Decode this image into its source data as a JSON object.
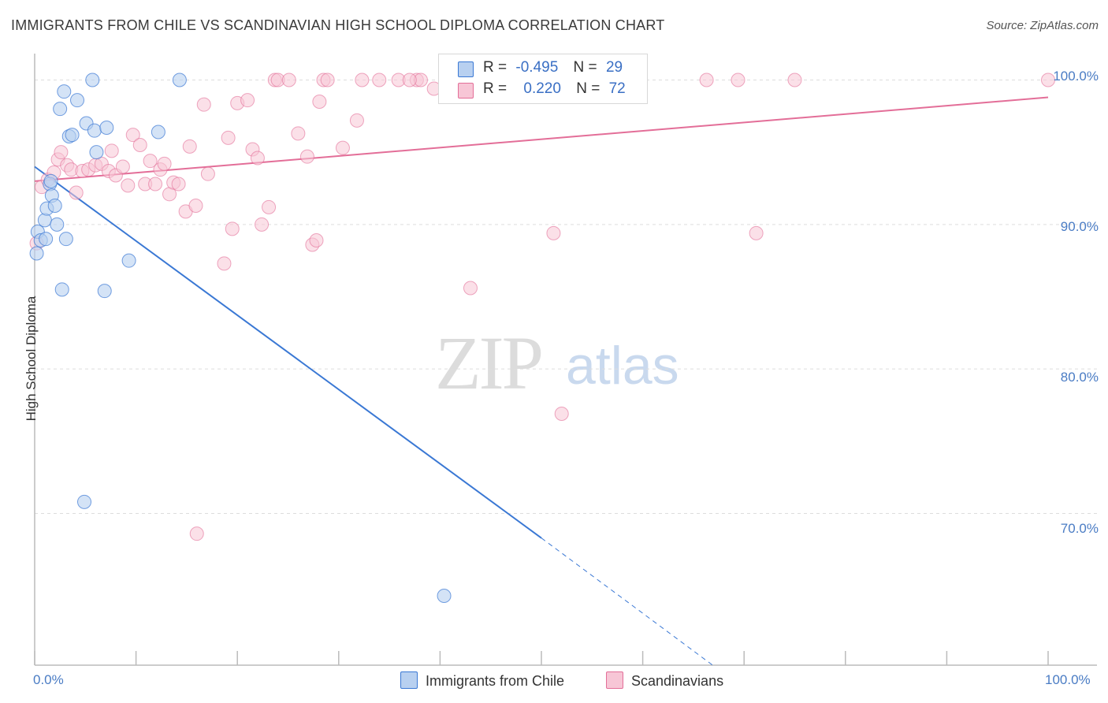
{
  "title": "IMMIGRANTS FROM CHILE VS SCANDINAVIAN HIGH SCHOOL DIPLOMA CORRELATION CHART",
  "source": "Source: ZipAtlas.com",
  "watermark": {
    "part1": "ZIP",
    "part2": "atlas"
  },
  "colors": {
    "blue": "#3a78d4",
    "blue_fill": "#b8d0f0",
    "pink": "#e36e98",
    "pink_fill": "#f7c6d6",
    "tick_text": "#4a7cc4",
    "grid": "#dddddd"
  },
  "legend_box": {
    "rows": [
      {
        "r_label": "R =",
        "r_value": "-0.495",
        "n_label": "N =",
        "n_value": "29"
      },
      {
        "r_label": "R =",
        "r_value": "0.220",
        "n_label": "N =",
        "n_value": "72"
      }
    ]
  },
  "bottom_legend": [
    "Immigrants from Chile",
    "Scandinavians"
  ],
  "chart_data": {
    "type": "scatter",
    "title": "IMMIGRANTS FROM CHILE VS SCANDINAVIAN HIGH SCHOOL DIPLOMA CORRELATION CHART",
    "xlabel": "",
    "ylabel": "High School Diploma",
    "xlim": [
      0,
      100
    ],
    "ylim": [
      59.5,
      101.5
    ],
    "x_tick_labels": [
      "0.0%",
      "100.0%"
    ],
    "y_ticks": [
      100,
      90,
      80,
      70
    ],
    "y_tick_labels": [
      "100.0%",
      "90.0%",
      "80.0%",
      "70.0%"
    ],
    "grid": true,
    "series": [
      {
        "name": "Immigrants from Chile",
        "color": "#3a78d4",
        "r": -0.495,
        "n": 29,
        "trend": {
          "x0": 0,
          "y0": 94.0,
          "x1": 50,
          "y1": 68.3,
          "dashed_to_x": 66.9,
          "dashed_to_y": 59.5
        },
        "points": [
          [
            0.2,
            88.0
          ],
          [
            0.3,
            89.5
          ],
          [
            0.6,
            88.9
          ],
          [
            1.0,
            90.3
          ],
          [
            1.2,
            91.1
          ],
          [
            1.5,
            92.8
          ],
          [
            1.7,
            92.0
          ],
          [
            2.0,
            91.3
          ],
          [
            2.2,
            90.0
          ],
          [
            2.5,
            98.0
          ],
          [
            2.9,
            99.2
          ],
          [
            3.1,
            89.0
          ],
          [
            3.4,
            96.1
          ],
          [
            3.7,
            96.2
          ],
          [
            4.2,
            98.6
          ],
          [
            5.1,
            97.0
          ],
          [
            5.7,
            100.0
          ],
          [
            5.9,
            96.5
          ],
          [
            6.1,
            95.0
          ],
          [
            7.1,
            96.7
          ],
          [
            2.7,
            85.5
          ],
          [
            6.9,
            85.4
          ],
          [
            9.3,
            87.5
          ],
          [
            12.2,
            96.4
          ],
          [
            14.3,
            100.0
          ],
          [
            4.9,
            70.8
          ],
          [
            40.4,
            64.3
          ],
          [
            1.1,
            89.0
          ],
          [
            1.6,
            93.0
          ]
        ]
      },
      {
        "name": "Scandinavians",
        "color": "#e36e98",
        "r": 0.22,
        "n": 72,
        "trend": {
          "x0": 0,
          "y0": 93.0,
          "x1": 100,
          "y1": 98.8
        },
        "points": [
          [
            0.2,
            88.7
          ],
          [
            0.7,
            92.6
          ],
          [
            1.3,
            93.1
          ],
          [
            1.9,
            93.6
          ],
          [
            2.3,
            94.5
          ],
          [
            2.6,
            95.0
          ],
          [
            3.2,
            94.1
          ],
          [
            3.6,
            93.8
          ],
          [
            4.1,
            92.2
          ],
          [
            4.7,
            93.7
          ],
          [
            5.3,
            93.8
          ],
          [
            6.0,
            94.1
          ],
          [
            6.6,
            94.2
          ],
          [
            7.3,
            93.7
          ],
          [
            7.6,
            95.1
          ],
          [
            8.0,
            93.4
          ],
          [
            8.7,
            94.0
          ],
          [
            9.2,
            92.7
          ],
          [
            9.7,
            96.2
          ],
          [
            10.4,
            95.5
          ],
          [
            10.9,
            92.8
          ],
          [
            11.4,
            94.4
          ],
          [
            11.9,
            92.8
          ],
          [
            12.4,
            93.8
          ],
          [
            12.8,
            94.2
          ],
          [
            13.3,
            92.1
          ],
          [
            13.7,
            92.9
          ],
          [
            14.2,
            92.8
          ],
          [
            14.9,
            90.9
          ],
          [
            15.3,
            95.4
          ],
          [
            15.9,
            91.3
          ],
          [
            16.7,
            98.3
          ],
          [
            17.1,
            93.5
          ],
          [
            18.7,
            87.3
          ],
          [
            19.1,
            96.0
          ],
          [
            19.5,
            89.7
          ],
          [
            20.0,
            98.4
          ],
          [
            21.0,
            98.6
          ],
          [
            21.5,
            95.2
          ],
          [
            22.0,
            94.6
          ],
          [
            22.4,
            90.0
          ],
          [
            23.1,
            91.2
          ],
          [
            23.7,
            100.0
          ],
          [
            24.0,
            100.0
          ],
          [
            25.1,
            100.0
          ],
          [
            26.0,
            96.3
          ],
          [
            26.9,
            94.7
          ],
          [
            27.4,
            88.6
          ],
          [
            27.8,
            88.9
          ],
          [
            28.1,
            98.5
          ],
          [
            28.5,
            100.0
          ],
          [
            30.4,
            95.3
          ],
          [
            31.8,
            97.2
          ],
          [
            32.3,
            100.0
          ],
          [
            34.0,
            100.0
          ],
          [
            35.9,
            100.0
          ],
          [
            37.7,
            100.0
          ],
          [
            38.1,
            100.0
          ],
          [
            39.4,
            99.4
          ],
          [
            42.2,
            100.0
          ],
          [
            43.0,
            85.6
          ],
          [
            47.5,
            100.0
          ],
          [
            51.2,
            89.4
          ],
          [
            52.0,
            76.9
          ],
          [
            66.3,
            100.0
          ],
          [
            69.4,
            100.0
          ],
          [
            71.2,
            89.4
          ],
          [
            75.0,
            100.0
          ],
          [
            100.0,
            100.0
          ],
          [
            16.0,
            68.6
          ],
          [
            37.0,
            100.0
          ],
          [
            28.9,
            100.0
          ]
        ]
      }
    ]
  }
}
